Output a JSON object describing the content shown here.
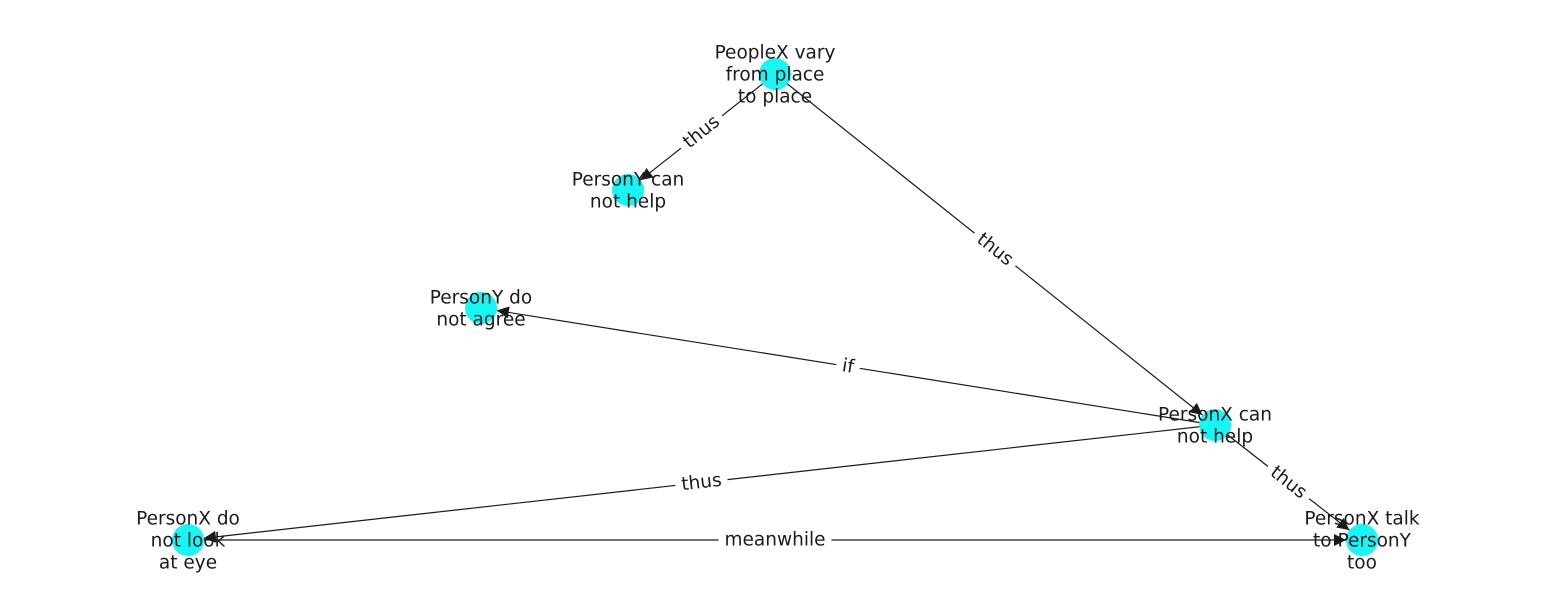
{
  "colors": {
    "node_fill": "#17f5f5",
    "edge": "#1a1a1a",
    "text": "#1a1a1a",
    "background": "#ffffff"
  },
  "nodes": [
    {
      "id": "peoplex_vary",
      "lines": [
        "PeopleX vary",
        "from place",
        "to place"
      ]
    },
    {
      "id": "persony_cannot_help",
      "lines": [
        "PersonY can",
        "not help"
      ]
    },
    {
      "id": "persony_not_agree",
      "lines": [
        "PersonY do",
        "not agree"
      ]
    },
    {
      "id": "personx_cannot_help",
      "lines": [
        "PersonX can",
        "not help"
      ]
    },
    {
      "id": "personx_not_look",
      "lines": [
        "PersonX do",
        "not look",
        "at eye"
      ]
    },
    {
      "id": "personx_talk",
      "lines": [
        "PersonX talk",
        "to PersonY",
        "too"
      ]
    }
  ],
  "edges": [
    {
      "from": "peoplex_vary",
      "to": "persony_cannot_help",
      "label": "thus"
    },
    {
      "from": "peoplex_vary",
      "to": "personx_cannot_help",
      "label": "thus"
    },
    {
      "from": "personx_cannot_help",
      "to": "persony_not_agree",
      "label": "if"
    },
    {
      "from": "personx_cannot_help",
      "to": "personx_not_look",
      "label": "thus"
    },
    {
      "from": "personx_cannot_help",
      "to": "personx_talk",
      "label": "thus"
    },
    {
      "from": "personx_not_look",
      "to": "personx_talk",
      "label": "meanwhile"
    }
  ]
}
